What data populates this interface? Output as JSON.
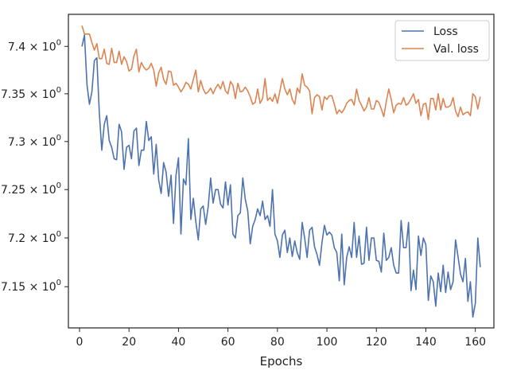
{
  "chart_data": {
    "type": "line",
    "title": "",
    "xlabel": "Epochs",
    "ylabel": "",
    "xlim": [
      -4.5,
      167.5
    ],
    "ylim": [
      7.108,
      7.434
    ],
    "yscale": "log",
    "grid": false,
    "legend_position": "top-right",
    "x_ticks": [
      0,
      20,
      40,
      60,
      80,
      100,
      120,
      140,
      160
    ],
    "x_tick_labels": [
      "0",
      "20",
      "40",
      "60",
      "80",
      "100",
      "120",
      "140",
      "160"
    ],
    "y_ticks": [
      7.15,
      7.2,
      7.25,
      7.3,
      7.35,
      7.4
    ],
    "y_tick_mantissas": [
      "7.15",
      "7.2",
      "7.25",
      "7.3",
      "7.35",
      "7.4"
    ],
    "y_tick_labels": [
      "7.15 × 10⁰",
      "7.2 × 10⁰",
      "7.25 × 10⁰",
      "7.3 × 10⁰",
      "7.35 × 10⁰",
      "7.4 × 10⁰"
    ],
    "y_tick_suffix": "10",
    "y_tick_exponent": "0",
    "series": [
      {
        "name": "Loss",
        "color": "#4c72b0",
        "x_start": 1,
        "values": [
          7.4,
          7.412,
          7.36,
          7.339,
          7.352,
          7.385,
          7.388,
          7.33,
          7.291,
          7.318,
          7.327,
          7.301,
          7.294,
          7.282,
          7.281,
          7.318,
          7.31,
          7.271,
          7.294,
          7.296,
          7.282,
          7.311,
          7.314,
          7.275,
          7.291,
          7.291,
          7.321,
          7.301,
          7.305,
          7.266,
          7.297,
          7.26,
          7.246,
          7.278,
          7.268,
          7.243,
          7.265,
          7.215,
          7.265,
          7.283,
          7.204,
          7.261,
          7.255,
          7.303,
          7.219,
          7.241,
          7.217,
          7.198,
          7.23,
          7.233,
          7.214,
          7.232,
          7.262,
          7.236,
          7.25,
          7.25,
          7.235,
          7.231,
          7.258,
          7.234,
          7.255,
          7.204,
          7.2,
          7.223,
          7.226,
          7.262,
          7.24,
          7.228,
          7.194,
          7.212,
          7.219,
          7.23,
          7.223,
          7.238,
          7.219,
          7.223,
          7.212,
          7.25,
          7.204,
          7.197,
          7.18,
          7.203,
          7.208,
          7.185,
          7.2,
          7.181,
          7.197,
          7.185,
          7.178,
          7.216,
          7.2,
          7.18,
          7.208,
          7.211,
          7.191,
          7.183,
          7.172,
          7.195,
          7.213,
          7.203,
          7.206,
          7.203,
          7.19,
          7.185,
          7.156,
          7.204,
          7.152,
          7.18,
          7.191,
          7.18,
          7.216,
          7.18,
          7.202,
          7.173,
          7.174,
          7.211,
          7.177,
          7.2,
          7.2,
          7.177,
          7.176,
          7.165,
          7.205,
          7.177,
          7.18,
          7.19,
          7.172,
          7.164,
          7.164,
          7.218,
          7.19,
          7.19,
          7.216,
          7.146,
          7.167,
          7.147,
          7.202,
          7.182,
          7.2,
          7.193,
          7.136,
          7.161,
          7.155,
          7.13,
          7.164,
          7.145,
          7.172,
          7.144,
          7.165,
          7.147,
          7.155,
          7.198,
          7.181,
          7.163,
          7.155,
          7.179,
          7.135,
          7.155,
          7.119,
          7.133,
          7.2,
          7.17
        ]
      },
      {
        "name": "Val. loss",
        "color": "#dd8452",
        "x_start": 1,
        "values": [
          7.422,
          7.413,
          7.413,
          7.413,
          7.404,
          7.396,
          7.403,
          7.387,
          7.387,
          7.397,
          7.382,
          7.381,
          7.398,
          7.383,
          7.383,
          7.395,
          7.381,
          7.389,
          7.384,
          7.374,
          7.376,
          7.39,
          7.397,
          7.373,
          7.383,
          7.378,
          7.375,
          7.377,
          7.382,
          7.375,
          7.358,
          7.372,
          7.378,
          7.365,
          7.36,
          7.374,
          7.373,
          7.359,
          7.361,
          7.357,
          7.352,
          7.356,
          7.362,
          7.36,
          7.355,
          7.365,
          7.375,
          7.352,
          7.364,
          7.355,
          7.35,
          7.352,
          7.356,
          7.35,
          7.356,
          7.36,
          7.355,
          7.363,
          7.353,
          7.35,
          7.363,
          7.359,
          7.345,
          7.361,
          7.352,
          7.353,
          7.357,
          7.353,
          7.347,
          7.339,
          7.341,
          7.355,
          7.34,
          7.345,
          7.366,
          7.343,
          7.346,
          7.342,
          7.35,
          7.34,
          7.353,
          7.366,
          7.355,
          7.349,
          7.355,
          7.344,
          7.339,
          7.356,
          7.351,
          7.371,
          7.359,
          7.357,
          7.353,
          7.329,
          7.346,
          7.349,
          7.347,
          7.333,
          7.347,
          7.344,
          7.348,
          7.348,
          7.339,
          7.329,
          7.333,
          7.33,
          7.334,
          7.34,
          7.343,
          7.344,
          7.338,
          7.355,
          7.343,
          7.338,
          7.332,
          7.336,
          7.346,
          7.334,
          7.334,
          7.343,
          7.341,
          7.334,
          7.326,
          7.342,
          7.355,
          7.344,
          7.33,
          7.338,
          7.34,
          7.339,
          7.346,
          7.338,
          7.34,
          7.345,
          7.35,
          7.34,
          7.344,
          7.327,
          7.339,
          7.34,
          7.323,
          7.345,
          7.345,
          7.333,
          7.35,
          7.333,
          7.345,
          7.336,
          7.336,
          7.338,
          7.346,
          7.332,
          7.326,
          7.336,
          7.328,
          7.33,
          7.331,
          7.327,
          7.35,
          7.347,
          7.334,
          7.347
        ]
      }
    ]
  }
}
